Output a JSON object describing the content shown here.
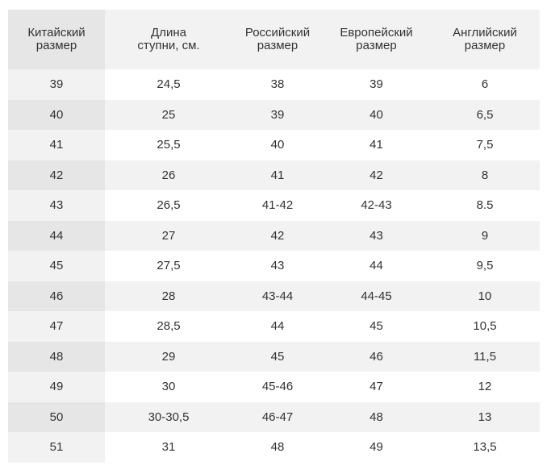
{
  "table": {
    "headers": [
      [
        "Китайский",
        "размер"
      ],
      [
        "Длина",
        "ступни, см."
      ],
      [
        "Российский",
        "размер"
      ],
      [
        "Европейский",
        "размер"
      ],
      [
        "Английский",
        "размер"
      ]
    ],
    "rows": [
      [
        "39",
        "24,5",
        "38",
        "39",
        "6"
      ],
      [
        "40",
        "25",
        "39",
        "40",
        "6,5"
      ],
      [
        "41",
        "25,5",
        "40",
        "41",
        "7,5"
      ],
      [
        "42",
        "26",
        "41",
        "42",
        "8"
      ],
      [
        "43",
        "26,5",
        "41-42",
        "42-43",
        "8.5"
      ],
      [
        "44",
        "27",
        "42",
        "43",
        "9"
      ],
      [
        "45",
        "27,5",
        "43",
        "44",
        "9,5"
      ],
      [
        "46",
        "28",
        "43-44",
        "44-45",
        "10"
      ],
      [
        "47",
        "28,5",
        "44",
        "45",
        "10,5"
      ],
      [
        "48",
        "29",
        "45",
        "46",
        "11,5"
      ],
      [
        "49",
        "30",
        "45-46",
        "47",
        "12"
      ],
      [
        "50",
        "30-30,5",
        "46-47",
        "48",
        "13"
      ],
      [
        "51",
        "31",
        "48",
        "49",
        "13,5"
      ]
    ]
  }
}
